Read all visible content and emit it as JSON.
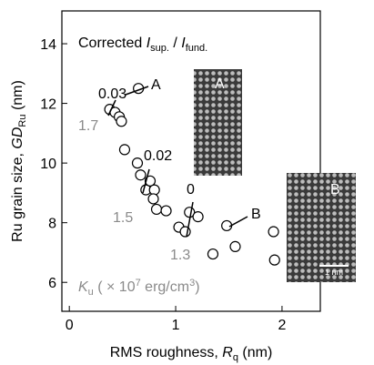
{
  "chart_data": {
    "type": "scatter",
    "x": [
      0.38,
      0.43,
      0.47,
      0.49,
      0.65,
      0.52,
      0.64,
      0.67,
      0.72,
      0.76,
      0.8,
      0.79,
      0.82,
      0.91,
      1.03,
      1.09,
      1.13,
      1.21,
      1.35,
      1.48,
      1.56,
      1.92,
      1.93
    ],
    "values": [
      11.8,
      11.7,
      11.55,
      11.4,
      12.5,
      10.45,
      10.0,
      9.6,
      9.1,
      9.4,
      9.1,
      8.8,
      8.45,
      8.4,
      7.85,
      7.7,
      8.35,
      8.2,
      6.95,
      7.9,
      7.2,
      7.7,
      6.75
    ],
    "color": "#000000",
    "xlim": [
      -0.07,
      2.36
    ],
    "xticks": [
      0,
      1,
      2
    ],
    "ylim": [
      5.03,
      15.1
    ],
    "yticks": [
      6,
      8,
      10,
      12,
      14
    ],
    "xlabel": {
      "text": "RMS roughness, ",
      "var": "R",
      "sub": "q",
      "unit": " (nm)"
    },
    "ylabel": {
      "text": "Ru grain size, ",
      "var": "GD",
      "sub": "Ru",
      "unit": " (nm)"
    },
    "heading": {
      "pre": "Corrected ",
      "var1": "I",
      "sub1": "sup.",
      "mid": " / ",
      "var2": "I",
      "sub2": "fund."
    },
    "ku_label": {
      "var": "K",
      "sub": "u",
      "mid": " ( × 10",
      "exp": "7",
      "unit": " erg/cm",
      "exp2": "3",
      "end": ")"
    },
    "annotations": [
      "0.03",
      "0.02",
      "0",
      "A",
      "B",
      "1.7",
      "1.5",
      "1.3"
    ],
    "insets": [
      {
        "label": "A"
      },
      {
        "label": "B",
        "scale": "1 nm"
      }
    ]
  }
}
